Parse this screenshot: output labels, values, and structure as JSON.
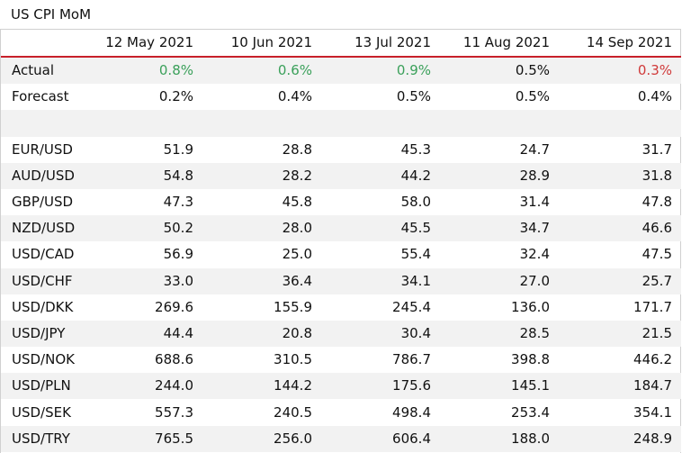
{
  "title": "US CPI MoM",
  "dates": [
    "12 May 2021",
    "10 Jun 2021",
    "13 Jul 2021",
    "11 Aug 2021",
    "14 Sep 2021"
  ],
  "actual": {
    "label": "Actual",
    "values": [
      "0.8%",
      "0.6%",
      "0.9%",
      "0.5%",
      "0.3%"
    ],
    "colors": [
      "#3aa05a",
      "#3aa05a",
      "#3aa05a",
      "#111111",
      "#d03a3a"
    ]
  },
  "forecast": {
    "label": "Forecast",
    "values": [
      "0.2%",
      "0.4%",
      "0.5%",
      "0.5%",
      "0.4%"
    ]
  },
  "rows": [
    {
      "pair": "EUR/USD",
      "values": [
        "51.9",
        "28.8",
        "45.3",
        "24.7",
        "31.7"
      ]
    },
    {
      "pair": "AUD/USD",
      "values": [
        "54.8",
        "28.2",
        "44.2",
        "28.9",
        "31.8"
      ]
    },
    {
      "pair": "GBP/USD",
      "values": [
        "47.3",
        "45.8",
        "58.0",
        "31.4",
        "47.8"
      ]
    },
    {
      "pair": "NZD/USD",
      "values": [
        "50.2",
        "28.0",
        "45.5",
        "34.7",
        "46.6"
      ]
    },
    {
      "pair": "USD/CAD",
      "values": [
        "56.9",
        "25.0",
        "55.4",
        "32.4",
        "47.5"
      ]
    },
    {
      "pair": "USD/CHF",
      "values": [
        "33.0",
        "36.4",
        "34.1",
        "27.0",
        "25.7"
      ]
    },
    {
      "pair": "USD/DKK",
      "values": [
        "269.6",
        "155.9",
        "245.4",
        "136.0",
        "171.7"
      ]
    },
    {
      "pair": "USD/JPY",
      "values": [
        "44.4",
        "20.8",
        "30.4",
        "28.5",
        "21.5"
      ]
    },
    {
      "pair": "USD/NOK",
      "values": [
        "688.6",
        "310.5",
        "786.7",
        "398.8",
        "446.2"
      ]
    },
    {
      "pair": "USD/PLN",
      "values": [
        "244.0",
        "144.2",
        "175.6",
        "145.1",
        "184.7"
      ]
    },
    {
      "pair": "USD/SEK",
      "values": [
        "557.3",
        "240.5",
        "498.4",
        "253.4",
        "354.1"
      ]
    },
    {
      "pair": "USD/TRY",
      "values": [
        "765.5",
        "256.0",
        "606.4",
        "188.0",
        "248.9"
      ]
    }
  ]
}
